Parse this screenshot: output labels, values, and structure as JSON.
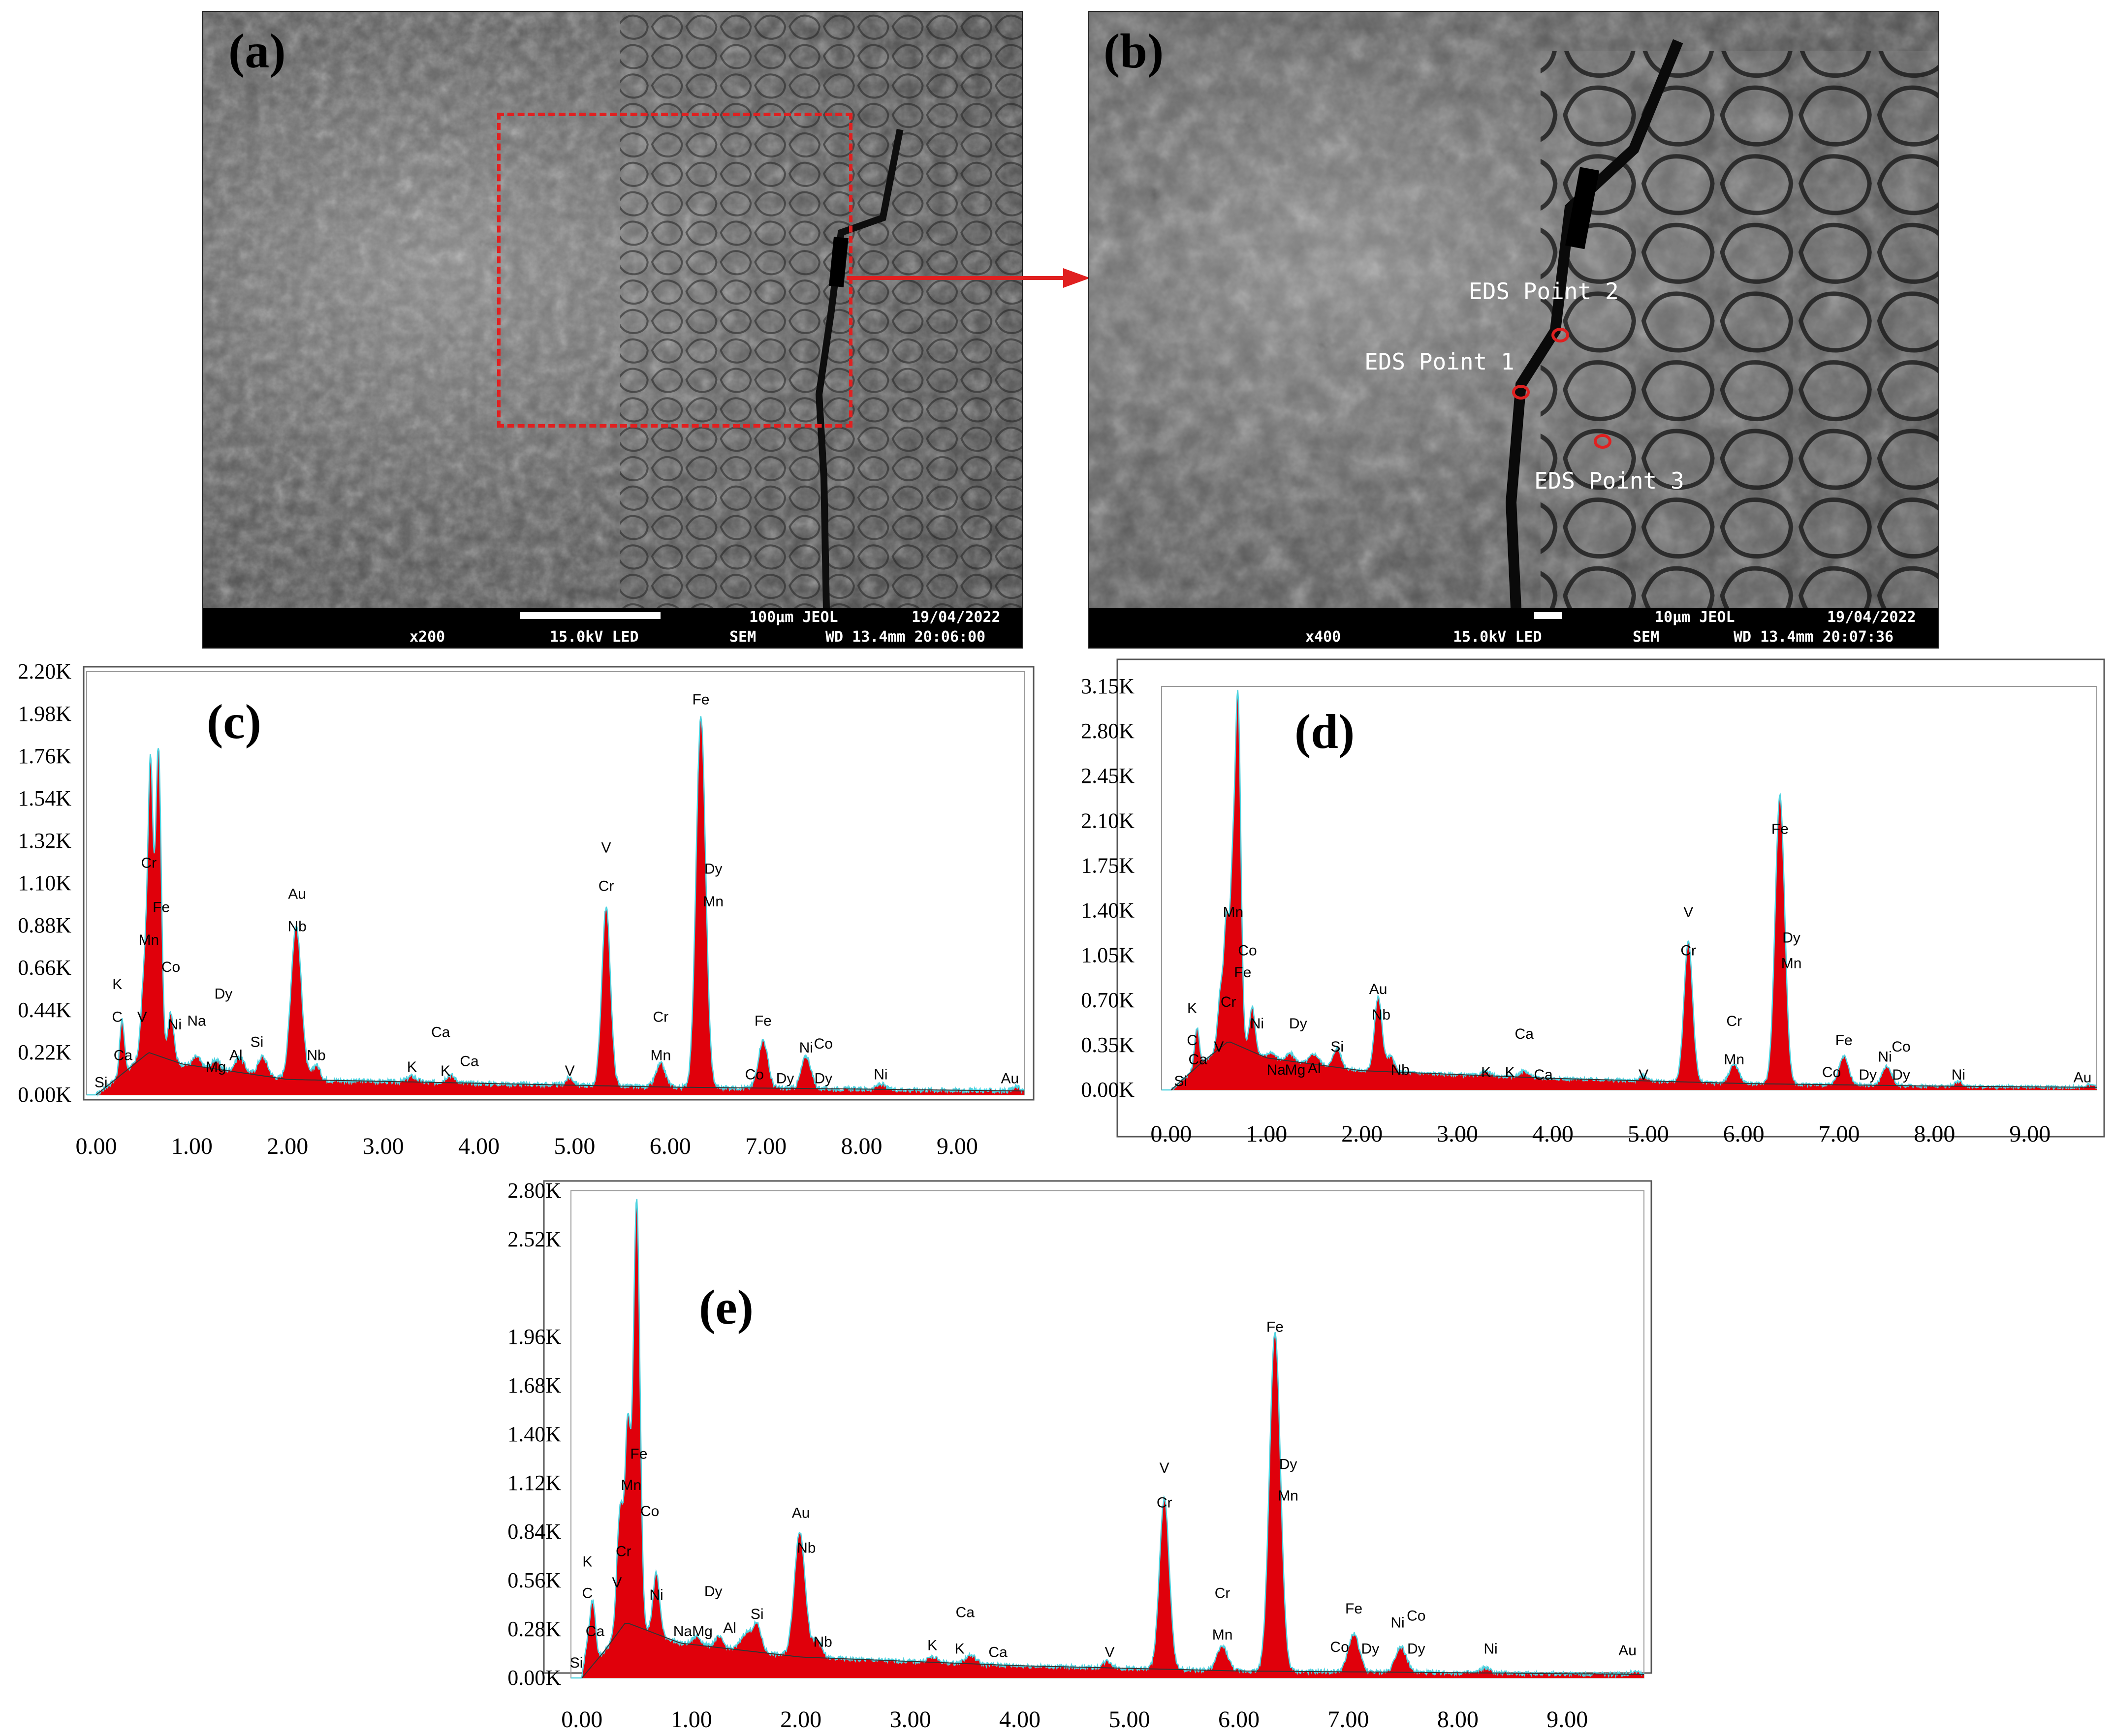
{
  "figure": {
    "panel_a": {
      "label": "(a)",
      "infobar": {
        "magnification": "x200",
        "voltage": "15.0kV LED",
        "mode": "SEM",
        "scale": "100µm JEOL",
        "date": "19/04/2022",
        "wd_time": "WD 13.4mm 20:06:00"
      },
      "roi_color": "#e02020"
    },
    "panel_b": {
      "label": "(b)",
      "infobar": {
        "magnification": "x400",
        "voltage": "15.0kV LED",
        "mode": "SEM",
        "scale": "10µm JEOL",
        "date": "19/04/2022",
        "wd_time": "WD 13.4mm 20:07:36"
      },
      "points": [
        {
          "label": "EDS Point 2"
        },
        {
          "label": "EDS Point 1"
        },
        {
          "label": "EDS Point 3"
        }
      ],
      "marker_color": "#e02020"
    },
    "arrow_color": "#e02020"
  },
  "chart_data": [
    {
      "type": "area",
      "panel": "(c)",
      "ylim": [
        0,
        2.2
      ],
      "xlim": [
        -0.1,
        9.7
      ],
      "y_ticks": [
        "0.00K",
        "0.22K",
        "0.44K",
        "0.66K",
        "0.88K",
        "1.10K",
        "1.32K",
        "1.54K",
        "1.76K",
        "1.98K",
        "2.20K"
      ],
      "x_ticks": [
        "0.00",
        "1.00",
        "2.00",
        "3.00",
        "4.00",
        "5.00",
        "6.00",
        "7.00",
        "8.00",
        "9.00"
      ],
      "fill_color": "#e0000b",
      "outline_color": "#4fd3e0",
      "background": {
        "x": [
          0.0,
          0.3,
          0.55,
          0.9,
          2.0,
          4.0,
          6.0,
          8.0,
          9.7
        ],
        "y": [
          0.0,
          0.12,
          0.22,
          0.16,
          0.08,
          0.06,
          0.04,
          0.03,
          0.02
        ]
      },
      "peaks": [
        {
          "x": 0.27,
          "h": 0.28,
          "w": 0.025
        },
        {
          "x": 0.52,
          "h": 0.55,
          "w": 0.04
        },
        {
          "x": 0.57,
          "h": 1.25,
          "w": 0.025
        },
        {
          "x": 0.65,
          "h": 1.6,
          "w": 0.03
        },
        {
          "x": 0.78,
          "h": 0.25,
          "w": 0.03
        },
        {
          "x": 1.05,
          "h": 0.05,
          "w": 0.04
        },
        {
          "x": 1.25,
          "h": 0.05,
          "w": 0.04
        },
        {
          "x": 1.5,
          "h": 0.08,
          "w": 0.05
        },
        {
          "x": 1.74,
          "h": 0.1,
          "w": 0.05
        },
        {
          "x": 2.09,
          "h": 0.8,
          "w": 0.055
        },
        {
          "x": 2.3,
          "h": 0.08,
          "w": 0.04
        },
        {
          "x": 3.3,
          "h": 0.03,
          "w": 0.05
        },
        {
          "x": 3.7,
          "h": 0.04,
          "w": 0.05
        },
        {
          "x": 4.95,
          "h": 0.04,
          "w": 0.04
        },
        {
          "x": 5.33,
          "h": 0.93,
          "w": 0.045
        },
        {
          "x": 5.9,
          "h": 0.12,
          "w": 0.05
        },
        {
          "x": 6.32,
          "h": 1.92,
          "w": 0.05
        },
        {
          "x": 6.97,
          "h": 0.25,
          "w": 0.05
        },
        {
          "x": 7.42,
          "h": 0.17,
          "w": 0.05
        },
        {
          "x": 8.2,
          "h": 0.03,
          "w": 0.04
        },
        {
          "x": 9.62,
          "h": 0.02,
          "w": 0.04
        }
      ],
      "labels": [
        {
          "text": "Si",
          "x": 0.05,
          "y": 0.04
        },
        {
          "text": "C",
          "x": 0.22,
          "y": 0.38
        },
        {
          "text": "K",
          "x": 0.22,
          "y": 0.55
        },
        {
          "text": "Ca",
          "x": 0.28,
          "y": 0.18
        },
        {
          "text": "V",
          "x": 0.48,
          "y": 0.38
        },
        {
          "text": "Mn",
          "x": 0.55,
          "y": 0.78
        },
        {
          "text": "Cr",
          "x": 0.55,
          "y": 1.18
        },
        {
          "text": "Fe",
          "x": 0.68,
          "y": 0.95
        },
        {
          "text": "Co",
          "x": 0.78,
          "y": 0.64
        },
        {
          "text": "Ni",
          "x": 0.82,
          "y": 0.34
        },
        {
          "text": "Na",
          "x": 1.05,
          "y": 0.36
        },
        {
          "text": "Mg",
          "x": 1.25,
          "y": 0.12
        },
        {
          "text": "Dy",
          "x": 1.33,
          "y": 0.5
        },
        {
          "text": "Al",
          "x": 1.46,
          "y": 0.18
        },
        {
          "text": "Si",
          "x": 1.68,
          "y": 0.25
        },
        {
          "text": "Au",
          "x": 2.1,
          "y": 1.02
        },
        {
          "text": "Nb",
          "x": 2.1,
          "y": 0.85
        },
        {
          "text": "Nb",
          "x": 2.3,
          "y": 0.18
        },
        {
          "text": "K",
          "x": 3.3,
          "y": 0.12
        },
        {
          "text": "Ca",
          "x": 3.6,
          "y": 0.3
        },
        {
          "text": "K",
          "x": 3.65,
          "y": 0.1
        },
        {
          "text": "Ca",
          "x": 3.9,
          "y": 0.15
        },
        {
          "text": "V",
          "x": 4.95,
          "y": 0.1
        },
        {
          "text": "V",
          "x": 5.33,
          "y": 1.26
        },
        {
          "text": "Cr",
          "x": 5.33,
          "y": 1.06
        },
        {
          "text": "Cr",
          "x": 5.9,
          "y": 0.38
        },
        {
          "text": "Mn",
          "x": 5.9,
          "y": 0.18
        },
        {
          "text": "Fe",
          "x": 6.32,
          "y": 2.03
        },
        {
          "text": "Dy",
          "x": 6.45,
          "y": 1.15
        },
        {
          "text": "Mn",
          "x": 6.45,
          "y": 0.98
        },
        {
          "text": "Fe",
          "x": 6.97,
          "y": 0.36
        },
        {
          "text": "Co",
          "x": 6.88,
          "y": 0.08
        },
        {
          "text": "Dy",
          "x": 7.2,
          "y": 0.06
        },
        {
          "text": "Ni",
          "x": 7.42,
          "y": 0.22
        },
        {
          "text": "Co",
          "x": 7.6,
          "y": 0.24
        },
        {
          "text": "Dy",
          "x": 7.6,
          "y": 0.06
        },
        {
          "text": "Ni",
          "x": 8.2,
          "y": 0.08
        },
        {
          "text": "Au",
          "x": 9.55,
          "y": 0.06
        }
      ]
    },
    {
      "type": "area",
      "panel": "(d)",
      "ylim": [
        0,
        3.15
      ],
      "xlim": [
        -0.1,
        9.7
      ],
      "y_ticks": [
        "0.00K",
        "0.35K",
        "0.70K",
        "1.05K",
        "1.40K",
        "1.75K",
        "2.10K",
        "2.45K",
        "2.80K",
        "3.15K"
      ],
      "x_ticks": [
        "0.00",
        "1.00",
        "2.00",
        "3.00",
        "4.00",
        "5.00",
        "6.00",
        "7.00",
        "8.00",
        "9.00"
      ],
      "fill_color": "#e0000b",
      "outline_color": "#4fd3e0",
      "background": {
        "x": [
          0.0,
          0.3,
          0.6,
          1.0,
          2.0,
          4.0,
          6.0,
          8.0,
          9.7
        ],
        "y": [
          0.0,
          0.2,
          0.38,
          0.25,
          0.15,
          0.09,
          0.05,
          0.03,
          0.02
        ]
      },
      "peaks": [
        {
          "x": 0.27,
          "h": 0.3,
          "w": 0.025
        },
        {
          "x": 0.52,
          "h": 0.45,
          "w": 0.03
        },
        {
          "x": 0.58,
          "h": 0.9,
          "w": 0.025
        },
        {
          "x": 0.64,
          "h": 1.1,
          "w": 0.025
        },
        {
          "x": 0.7,
          "h": 2.7,
          "w": 0.03
        },
        {
          "x": 0.85,
          "h": 0.35,
          "w": 0.03
        },
        {
          "x": 1.05,
          "h": 0.05,
          "w": 0.04
        },
        {
          "x": 1.25,
          "h": 0.06,
          "w": 0.04
        },
        {
          "x": 1.5,
          "h": 0.08,
          "w": 0.05
        },
        {
          "x": 1.74,
          "h": 0.15,
          "w": 0.04
        },
        {
          "x": 2.17,
          "h": 0.58,
          "w": 0.04
        },
        {
          "x": 2.3,
          "h": 0.12,
          "w": 0.04
        },
        {
          "x": 3.3,
          "h": 0.03,
          "w": 0.05
        },
        {
          "x": 3.7,
          "h": 0.05,
          "w": 0.05
        },
        {
          "x": 4.95,
          "h": 0.04,
          "w": 0.04
        },
        {
          "x": 5.42,
          "h": 1.1,
          "w": 0.045
        },
        {
          "x": 5.9,
          "h": 0.15,
          "w": 0.05
        },
        {
          "x": 6.38,
          "h": 2.25,
          "w": 0.05
        },
        {
          "x": 7.05,
          "h": 0.22,
          "w": 0.05
        },
        {
          "x": 7.5,
          "h": 0.15,
          "w": 0.05
        },
        {
          "x": 8.25,
          "h": 0.04,
          "w": 0.04
        },
        {
          "x": 9.62,
          "h": 0.02,
          "w": 0.04
        }
      ],
      "labels": [
        {
          "text": "Si",
          "x": 0.1,
          "y": 0.03
        },
        {
          "text": "C",
          "x": 0.22,
          "y": 0.35
        },
        {
          "text": "K",
          "x": 0.22,
          "y": 0.6
        },
        {
          "text": "Ca",
          "x": 0.28,
          "y": 0.2
        },
        {
          "text": "V",
          "x": 0.5,
          "y": 0.3
        },
        {
          "text": "Cr",
          "x": 0.6,
          "y": 0.65
        },
        {
          "text": "Mn",
          "x": 0.65,
          "y": 1.35
        },
        {
          "text": "Co",
          "x": 0.8,
          "y": 1.05
        },
        {
          "text": "Fe",
          "x": 0.75,
          "y": 0.88
        },
        {
          "text": "Ni",
          "x": 0.9,
          "y": 0.48
        },
        {
          "text": "Na",
          "x": 1.1,
          "y": 0.12
        },
        {
          "text": "Dy",
          "x": 1.33,
          "y": 0.48
        },
        {
          "text": "Mg",
          "x": 1.3,
          "y": 0.12
        },
        {
          "text": "Al",
          "x": 1.5,
          "y": 0.13
        },
        {
          "text": "Si",
          "x": 1.74,
          "y": 0.3
        },
        {
          "text": "Au",
          "x": 2.17,
          "y": 0.75
        },
        {
          "text": "Nb",
          "x": 2.2,
          "y": 0.55
        },
        {
          "text": "Nb",
          "x": 2.4,
          "y": 0.12
        },
        {
          "text": "K",
          "x": 3.3,
          "y": 0.1
        },
        {
          "text": "Ca",
          "x": 3.7,
          "y": 0.4
        },
        {
          "text": "K",
          "x": 3.55,
          "y": 0.1
        },
        {
          "text": "Ca",
          "x": 3.9,
          "y": 0.08
        },
        {
          "text": "V",
          "x": 4.95,
          "y": 0.08
        },
        {
          "text": "V",
          "x": 5.42,
          "y": 1.35
        },
        {
          "text": "Cr",
          "x": 5.42,
          "y": 1.05
        },
        {
          "text": "Cr",
          "x": 5.9,
          "y": 0.5
        },
        {
          "text": "Mn",
          "x": 5.9,
          "y": 0.2
        },
        {
          "text": "Fe",
          "x": 6.38,
          "y": 2.0
        },
        {
          "text": "Dy",
          "x": 6.5,
          "y": 1.15
        },
        {
          "text": "Mn",
          "x": 6.5,
          "y": 0.95
        },
        {
          "text": "Fe",
          "x": 7.05,
          "y": 0.35
        },
        {
          "text": "Co",
          "x": 6.92,
          "y": 0.1
        },
        {
          "text": "Dy",
          "x": 7.3,
          "y": 0.08
        },
        {
          "text": "Ni",
          "x": 7.48,
          "y": 0.22
        },
        {
          "text": "Co",
          "x": 7.65,
          "y": 0.3
        },
        {
          "text": "Dy",
          "x": 7.65,
          "y": 0.08
        },
        {
          "text": "Ni",
          "x": 8.25,
          "y": 0.08
        },
        {
          "text": "Au",
          "x": 9.55,
          "y": 0.06
        }
      ]
    },
    {
      "type": "area",
      "panel": "(e)",
      "ylim": [
        0,
        2.8
      ],
      "xlim": [
        -0.1,
        9.7
      ],
      "y_ticks": [
        "0.00K",
        "0.28K",
        "0.56K",
        "0.84K",
        "1.12K",
        "1.40K",
        "1.68K",
        "1.96K",
        "2.52K",
        "2.80K"
      ],
      "x_ticks": [
        "0.00",
        "1.00",
        "2.00",
        "3.00",
        "4.00",
        "5.00",
        "6.00",
        "7.00",
        "8.00",
        "9.00"
      ],
      "fill_color": "#e0000b",
      "outline_color": "#4fd3e0",
      "background": {
        "x": [
          0.0,
          0.2,
          0.4,
          0.9,
          2.0,
          4.0,
          6.0,
          8.0,
          9.7
        ],
        "y": [
          0.0,
          0.15,
          0.32,
          0.2,
          0.12,
          0.07,
          0.04,
          0.03,
          0.02
        ]
      },
      "peaks": [
        {
          "x": 0.05,
          "h": 0.15,
          "w": 0.025
        },
        {
          "x": 0.1,
          "h": 0.35,
          "w": 0.025
        },
        {
          "x": 0.35,
          "h": 0.7,
          "w": 0.03
        },
        {
          "x": 0.42,
          "h": 1.1,
          "w": 0.025
        },
        {
          "x": 0.5,
          "h": 2.45,
          "w": 0.03
        },
        {
          "x": 0.68,
          "h": 0.35,
          "w": 0.03
        },
        {
          "x": 1.05,
          "h": 0.05,
          "w": 0.04
        },
        {
          "x": 1.25,
          "h": 0.06,
          "w": 0.04
        },
        {
          "x": 1.5,
          "h": 0.1,
          "w": 0.05
        },
        {
          "x": 1.6,
          "h": 0.15,
          "w": 0.04
        },
        {
          "x": 1.99,
          "h": 0.72,
          "w": 0.05
        },
        {
          "x": 2.15,
          "h": 0.1,
          "w": 0.04
        },
        {
          "x": 3.2,
          "h": 0.03,
          "w": 0.05
        },
        {
          "x": 3.55,
          "h": 0.05,
          "w": 0.05
        },
        {
          "x": 4.8,
          "h": 0.04,
          "w": 0.04
        },
        {
          "x": 5.32,
          "h": 0.98,
          "w": 0.045
        },
        {
          "x": 5.85,
          "h": 0.14,
          "w": 0.05
        },
        {
          "x": 6.33,
          "h": 1.95,
          "w": 0.05
        },
        {
          "x": 7.05,
          "h": 0.22,
          "w": 0.05
        },
        {
          "x": 7.48,
          "h": 0.15,
          "w": 0.05
        },
        {
          "x": 8.25,
          "h": 0.03,
          "w": 0.04
        },
        {
          "x": 9.62,
          "h": 0.02,
          "w": 0.04
        }
      ],
      "labels": [
        {
          "text": "Si",
          "x": -0.05,
          "y": 0.06
        },
        {
          "text": "C",
          "x": 0.05,
          "y": 0.46
        },
        {
          "text": "K",
          "x": 0.05,
          "y": 0.64
        },
        {
          "text": "Ca",
          "x": 0.12,
          "y": 0.24
        },
        {
          "text": "V",
          "x": 0.32,
          "y": 0.52
        },
        {
          "text": "Cr",
          "x": 0.38,
          "y": 0.7
        },
        {
          "text": "Mn",
          "x": 0.45,
          "y": 1.08
        },
        {
          "text": "Fe",
          "x": 0.52,
          "y": 1.26
        },
        {
          "text": "Co",
          "x": 0.62,
          "y": 0.93
        },
        {
          "text": "Ni",
          "x": 0.68,
          "y": 0.45
        },
        {
          "text": "Na",
          "x": 0.92,
          "y": 0.24
        },
        {
          "text": "Mg",
          "x": 1.1,
          "y": 0.24
        },
        {
          "text": "Dy",
          "x": 1.2,
          "y": 0.47
        },
        {
          "text": "Al",
          "x": 1.35,
          "y": 0.26
        },
        {
          "text": "Si",
          "x": 1.6,
          "y": 0.34
        },
        {
          "text": "Au",
          "x": 2.0,
          "y": 0.92
        },
        {
          "text": "Nb",
          "x": 2.05,
          "y": 0.72
        },
        {
          "text": "Nb",
          "x": 2.2,
          "y": 0.18
        },
        {
          "text": "K",
          "x": 3.2,
          "y": 0.16
        },
        {
          "text": "Ca",
          "x": 3.5,
          "y": 0.35
        },
        {
          "text": "K",
          "x": 3.45,
          "y": 0.14
        },
        {
          "text": "Ca",
          "x": 3.8,
          "y": 0.12
        },
        {
          "text": "V",
          "x": 4.82,
          "y": 0.12
        },
        {
          "text": "V",
          "x": 5.32,
          "y": 1.18
        },
        {
          "text": "Cr",
          "x": 5.32,
          "y": 0.98
        },
        {
          "text": "Cr",
          "x": 5.85,
          "y": 0.46
        },
        {
          "text": "Mn",
          "x": 5.85,
          "y": 0.22
        },
        {
          "text": "Fe",
          "x": 6.33,
          "y": 1.99
        },
        {
          "text": "Dy",
          "x": 6.45,
          "y": 1.2
        },
        {
          "text": "Mn",
          "x": 6.45,
          "y": 1.02
        },
        {
          "text": "Fe",
          "x": 7.05,
          "y": 0.37
        },
        {
          "text": "Co",
          "x": 6.92,
          "y": 0.15
        },
        {
          "text": "Dy",
          "x": 7.2,
          "y": 0.14
        },
        {
          "text": "Ni",
          "x": 7.45,
          "y": 0.29
        },
        {
          "text": "Co",
          "x": 7.62,
          "y": 0.33
        },
        {
          "text": "Dy",
          "x": 7.62,
          "y": 0.14
        },
        {
          "text": "Ni",
          "x": 8.3,
          "y": 0.14
        },
        {
          "text": "Au",
          "x": 9.55,
          "y": 0.13
        }
      ]
    }
  ]
}
